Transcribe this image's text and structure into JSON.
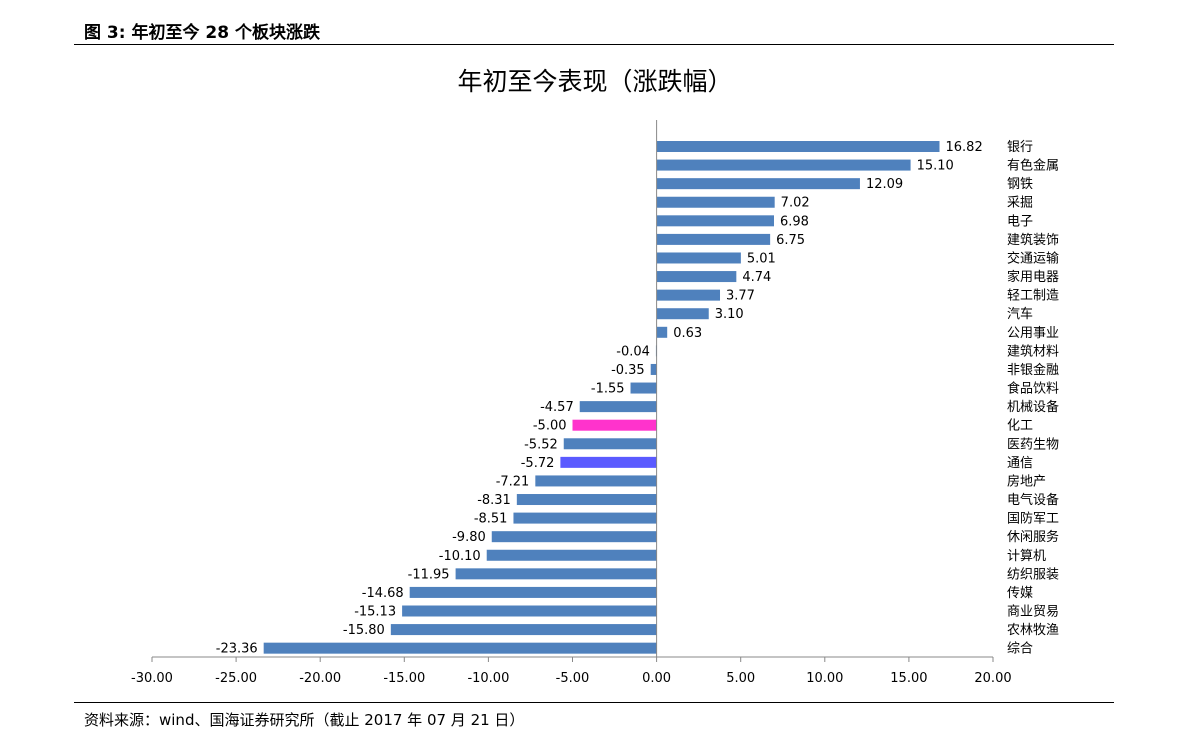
{
  "header": {
    "figure_label": "图 3:  年初至今 28 个板块涨跌"
  },
  "footer": {
    "source": "资料来源：wind、国海证券研究所（截止 2017 年 07 月 21 日）"
  },
  "colors": {
    "default_bar": "#4f81bd",
    "highlight_1": "#ff33cc",
    "highlight_2": "#5a5aff"
  },
  "chart_data": {
    "type": "bar",
    "orientation": "horizontal",
    "title": "年初至今表现（涨跌幅）",
    "xlabel": "",
    "ylabel": "",
    "xlim": [
      -30,
      20
    ],
    "x_ticks": [
      -30,
      -25,
      -20,
      -15,
      -10,
      -5,
      0,
      5,
      10,
      15,
      20
    ],
    "x_tick_labels": [
      "-30.00",
      "-25.00",
      "-20.00",
      "-15.00",
      "-10.00",
      "-5.00",
      "0.00",
      "5.00",
      "10.00",
      "15.00",
      "20.00"
    ],
    "grid": false,
    "categories": [
      "银行",
      "有色金属",
      "钢铁",
      "采掘",
      "电子",
      "建筑装饰",
      "交通运输",
      "家用电器",
      "轻工制造",
      "汽车",
      "公用事业",
      "建筑材料",
      "非银金融",
      "食品饮料",
      "机械设备",
      "化工",
      "医药生物",
      "通信",
      "房地产",
      "电气设备",
      "国防军工",
      "休闲服务",
      "计算机",
      "纺织服装",
      "传媒",
      "商业贸易",
      "农林牧渔",
      "综合"
    ],
    "values": [
      16.82,
      15.1,
      12.09,
      7.02,
      6.98,
      6.75,
      5.01,
      4.74,
      3.77,
      3.1,
      0.63,
      -0.04,
      -0.35,
      -1.55,
      -4.57,
      -5.0,
      -5.52,
      -5.72,
      -7.21,
      -8.31,
      -8.51,
      -9.8,
      -10.1,
      -11.95,
      -14.68,
      -15.13,
      -15.8,
      -23.36
    ],
    "value_labels": [
      "16.82",
      "15.10",
      "12.09",
      "7.02",
      "6.98",
      "6.75",
      "5.01",
      "4.74",
      "3.77",
      "3.10",
      "0.63",
      "-0.04",
      "-0.35",
      "-1.55",
      "-4.57",
      "-5.00",
      "-5.52",
      "-5.72",
      "-7.21",
      "-8.31",
      "-8.51",
      "-9.80",
      "-10.10",
      "-11.95",
      "-14.68",
      "-15.13",
      "-15.80",
      "-23.36"
    ],
    "highlights": {
      "化工": "highlight_1",
      "通信": "highlight_2"
    }
  }
}
